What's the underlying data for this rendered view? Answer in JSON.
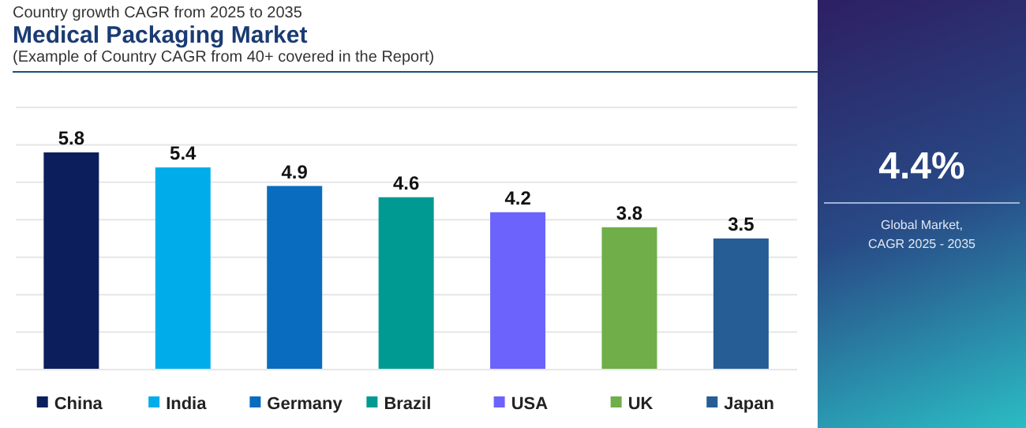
{
  "chart_data": {
    "type": "bar",
    "title": "Medical Packaging Market",
    "subtitle": "Country growth CAGR from 2025 to 2035",
    "annotations": [
      "(Example of Country CAGR from 40+ covered in the Report)",
      "4.4%",
      "Global Market,\nCAGR 2025 - 2035"
    ],
    "categories": [
      "China",
      "India",
      "Germany",
      "Brazil",
      "USA",
      "UK",
      "Japan"
    ],
    "values": [
      5.8,
      5.4,
      4.9,
      4.6,
      4.2,
      3.8,
      3.5
    ],
    "colors": [
      "#0c1f5c",
      "#00adea",
      "#0a6cbf",
      "#009a93",
      "#6b63fb",
      "#6fae48",
      "#275d95"
    ],
    "ylim": [
      0,
      7
    ],
    "yticks": [
      {
        "value": 0,
        "label": null
      },
      {
        "value": 1,
        "label": null
      },
      {
        "value": 2,
        "label": null
      },
      {
        "value": 3,
        "label": null
      },
      {
        "value": 4,
        "label": null
      },
      {
        "value": 5,
        "label": null
      },
      {
        "value": 6,
        "label": null
      },
      {
        "value": 7,
        "label": null
      }
    ],
    "grid": "y",
    "tick_labels": "x",
    "data_labels": true
  }
}
